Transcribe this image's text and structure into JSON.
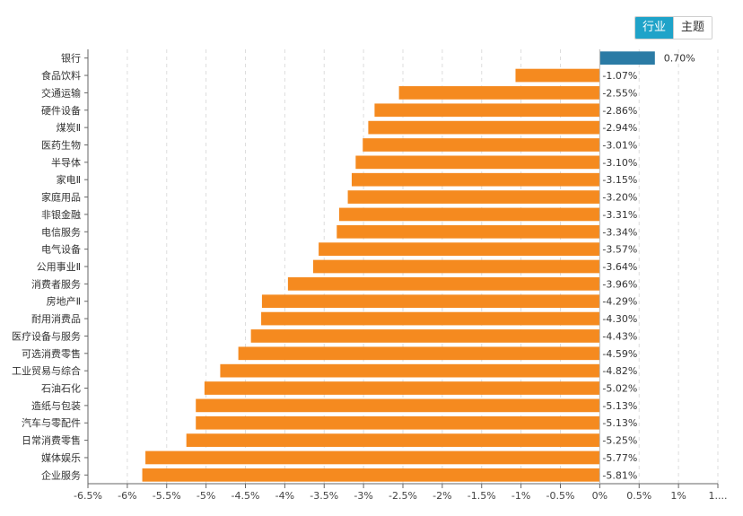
{
  "toggle": {
    "industry_label": "行业",
    "theme_label": "主题"
  },
  "colors": {
    "negative": "#f58a1f",
    "positive": "#2b7ba5",
    "grid": "#dddddd",
    "axis": "#666666"
  },
  "chart_data": {
    "type": "bar",
    "orientation": "horizontal",
    "categories": [
      "银行",
      "食品饮料",
      "交通运输",
      "硬件设备",
      "煤炭Ⅱ",
      "医药生物",
      "半导体",
      "家电Ⅱ",
      "家庭用品",
      "非银金融",
      "电信服务",
      "电气设备",
      "公用事业Ⅱ",
      "消费者服务",
      "房地产Ⅱ",
      "耐用消费品",
      "医疗设备与服务",
      "可选消费零售",
      "工业贸易与综合",
      "石油石化",
      "造纸与包装",
      "汽车与零配件",
      "日常消费零售",
      "媒体娱乐",
      "企业服务"
    ],
    "values": [
      0.7,
      -1.07,
      -2.55,
      -2.86,
      -2.94,
      -3.01,
      -3.1,
      -3.15,
      -3.2,
      -3.31,
      -3.34,
      -3.57,
      -3.64,
      -3.96,
      -4.29,
      -4.3,
      -4.43,
      -4.59,
      -4.82,
      -5.02,
      -5.13,
      -5.13,
      -5.25,
      -5.77,
      -5.81
    ],
    "value_labels": [
      "0.70%",
      "-1.07%",
      "-2.55%",
      "-2.86%",
      "-2.94%",
      "-3.01%",
      "-3.10%",
      "-3.15%",
      "-3.20%",
      "-3.31%",
      "-3.34%",
      "-3.57%",
      "-3.64%",
      "-3.96%",
      "-4.29%",
      "-4.30%",
      "-4.43%",
      "-4.59%",
      "-4.82%",
      "-5.02%",
      "-5.13%",
      "-5.13%",
      "-5.25%",
      "-5.77%",
      "-5.81%"
    ],
    "x_ticks": [
      -6.5,
      -6,
      -5.5,
      -5,
      -4.5,
      -4,
      -3.5,
      -3,
      -2.5,
      -2,
      -1.5,
      -1,
      -0.5,
      0,
      0.5,
      1,
      1.5
    ],
    "x_tick_labels": [
      "-6.5%",
      "-6%",
      "-5.5%",
      "-5%",
      "-4.5%",
      "-4%",
      "-3.5%",
      "-3%",
      "-2.5%",
      "-2%",
      "-1.5%",
      "-1%",
      "-0.5%",
      "0%",
      "0.5%",
      "1%",
      "1...."
    ],
    "xlim": [
      -6.5,
      1.5
    ],
    "grid": true,
    "title": "",
    "xlabel": "",
    "ylabel": ""
  }
}
